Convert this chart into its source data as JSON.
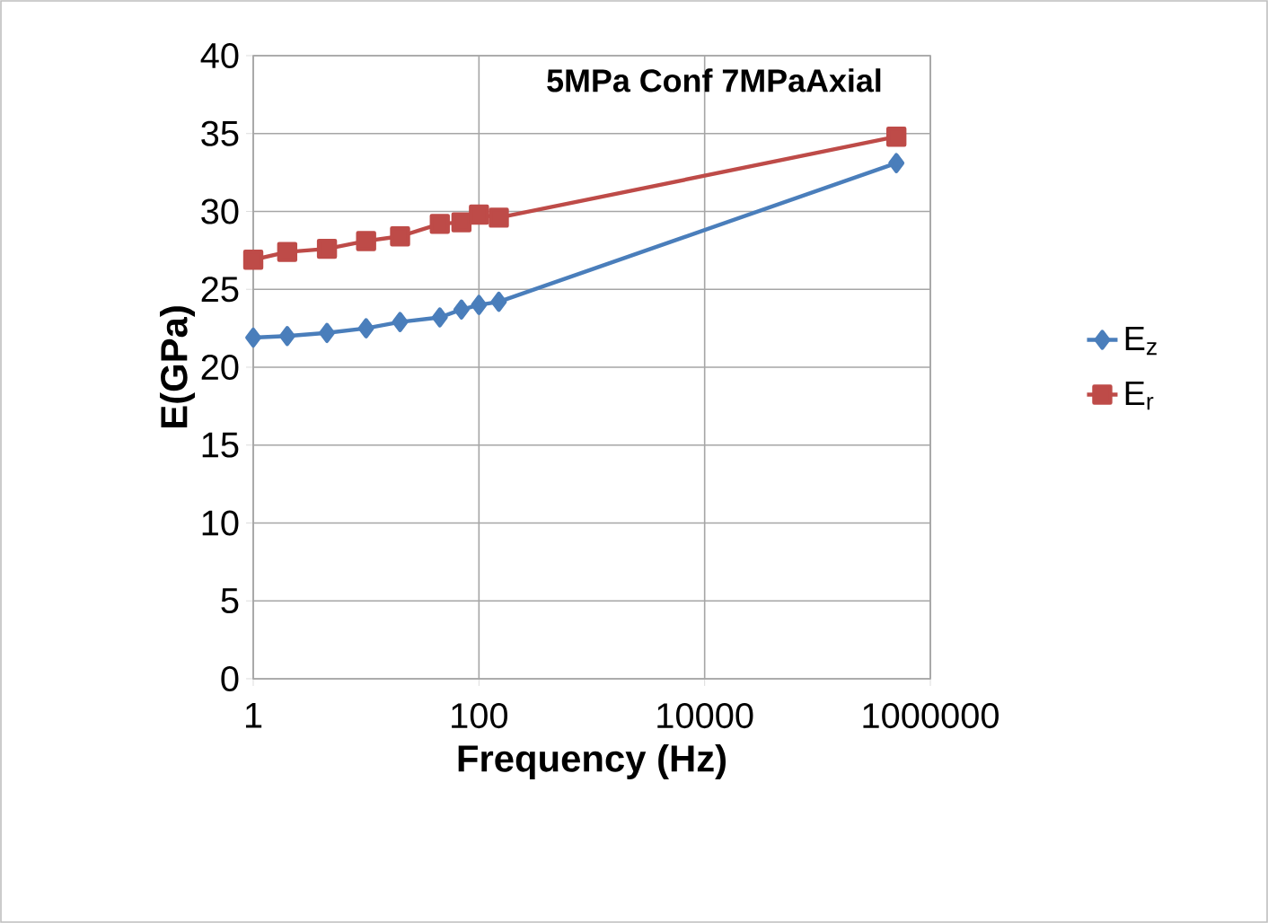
{
  "chart_data": {
    "type": "line",
    "title": "5MPa Conf 7MPaAxial",
    "xlabel": "Frequency (Hz)",
    "ylabel": "E(GPa)",
    "log": "x",
    "xlim": [
      1,
      1000000
    ],
    "xticks": [
      1,
      100,
      10000,
      1000000
    ],
    "ylim": [
      0,
      40
    ],
    "yticks": [
      0,
      5,
      10,
      15,
      20,
      25,
      30,
      35,
      40
    ],
    "grid": true,
    "legend": "right",
    "series": [
      {
        "name": "E$_{z}$",
        "color": "#4a7ebb",
        "marker": "diamond",
        "x": [
          1,
          2,
          4.5,
          10,
          20,
          45,
          70,
          100,
          150,
          500000
        ],
        "values": [
          21.9,
          22.0,
          22.2,
          22.5,
          22.9,
          23.2,
          23.7,
          24.0,
          24.2,
          33.1
        ]
      },
      {
        "name": "E$_{r}$",
        "color": "#be4b48",
        "marker": "square",
        "x": [
          1,
          2,
          4.5,
          10,
          20,
          45,
          70,
          100,
          150,
          500000
        ],
        "values": [
          26.9,
          27.4,
          27.6,
          28.1,
          28.4,
          29.2,
          29.3,
          29.8,
          29.6,
          34.8
        ]
      }
    ]
  }
}
